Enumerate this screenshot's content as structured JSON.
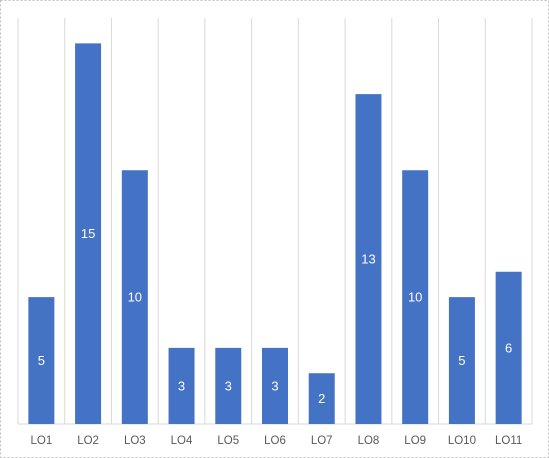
{
  "chart_data": {
    "type": "bar",
    "categories": [
      "LO1",
      "LO2",
      "LO3",
      "LO4",
      "LO5",
      "LO6",
      "LO7",
      "LO8",
      "LO9",
      "LO10",
      "LO11"
    ],
    "values": [
      5,
      15,
      10,
      3,
      3,
      3,
      2,
      13,
      10,
      5,
      6
    ],
    "color": "#4472c4",
    "ylim": [
      0,
      16
    ]
  }
}
